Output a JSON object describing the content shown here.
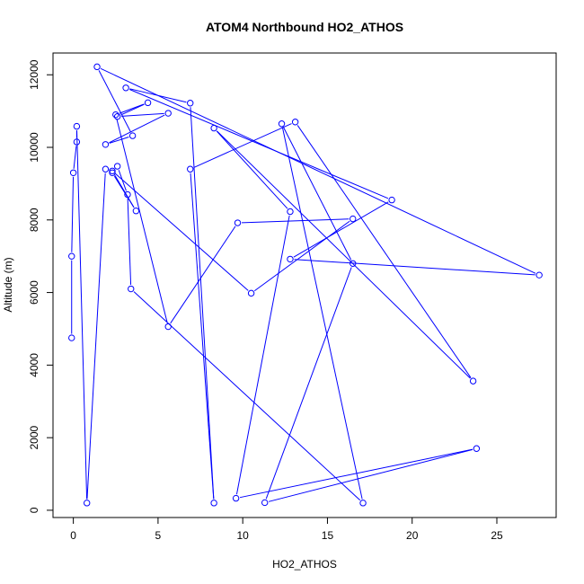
{
  "chart_data": {
    "type": "line",
    "title": "ATOM4 Northbound HO2_ATHOS",
    "xlabel": "HO2_ATHOS",
    "ylabel": "Altitude (m)",
    "xlim": [
      -1.2,
      28.5
    ],
    "ylim": [
      -200,
      12600
    ],
    "x_ticks": [
      0,
      5,
      10,
      15,
      20,
      25
    ],
    "y_ticks": [
      0,
      2000,
      4000,
      6000,
      8000,
      10000,
      12000
    ],
    "grid": false,
    "legend": "none",
    "series": [
      {
        "color": "#0000ff",
        "marker": "open-circle",
        "points": [
          {
            "x": -0.1,
            "y": 4750
          },
          {
            "x": -0.1,
            "y": 7000
          },
          {
            "x": 0.0,
            "y": 9300
          },
          {
            "x": 0.2,
            "y": 10150
          },
          {
            "x": 0.2,
            "y": 10580
          },
          {
            "x": 0.8,
            "y": 200
          },
          {
            "x": 1.9,
            "y": 9400
          },
          {
            "x": 2.3,
            "y": 9300
          },
          {
            "x": 3.7,
            "y": 8250
          },
          {
            "x": 2.3,
            "y": 9350
          },
          {
            "x": 10.5,
            "y": 5980
          },
          {
            "x": 16.5,
            "y": 8030
          },
          {
            "x": 9.7,
            "y": 7920
          },
          {
            "x": 5.6,
            "y": 5060
          },
          {
            "x": 2.5,
            "y": 10900
          },
          {
            "x": 4.4,
            "y": 11230
          },
          {
            "x": 2.6,
            "y": 10850
          },
          {
            "x": 5.6,
            "y": 10940
          },
          {
            "x": 1.9,
            "y": 10080
          },
          {
            "x": 3.5,
            "y": 10320
          },
          {
            "x": 1.4,
            "y": 12220
          },
          {
            "x": 27.5,
            "y": 6480
          },
          {
            "x": 12.8,
            "y": 6920
          },
          {
            "x": 18.8,
            "y": 8550
          },
          {
            "x": 3.1,
            "y": 11640
          },
          {
            "x": 6.9,
            "y": 11220
          },
          {
            "x": 8.3,
            "y": 200
          },
          {
            "x": 6.9,
            "y": 9400
          },
          {
            "x": 13.1,
            "y": 10700
          },
          {
            "x": 23.6,
            "y": 3560
          },
          {
            "x": 8.3,
            "y": 10530
          },
          {
            "x": 12.8,
            "y": 8230
          },
          {
            "x": 9.6,
            "y": 330
          },
          {
            "x": 23.8,
            "y": 1700
          },
          {
            "x": 11.3,
            "y": 210
          },
          {
            "x": 16.5,
            "y": 6800
          },
          {
            "x": 12.3,
            "y": 10650
          },
          {
            "x": 17.1,
            "y": 200
          },
          {
            "x": 3.4,
            "y": 6100
          },
          {
            "x": 3.2,
            "y": 8700
          },
          {
            "x": 2.6,
            "y": 9480
          }
        ]
      }
    ]
  }
}
